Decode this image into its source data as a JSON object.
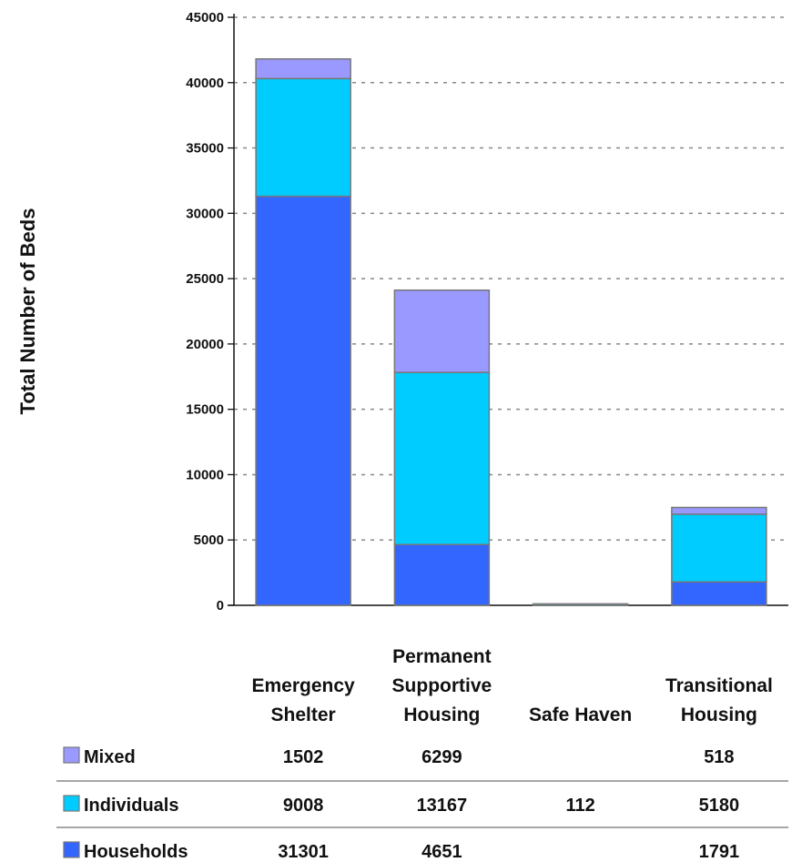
{
  "chart_data": {
    "type": "bar",
    "stacked": true,
    "title": "",
    "xlabel": "",
    "ylabel": "Total Number of Beds",
    "ylim": [
      0,
      45000
    ],
    "yticks": [
      "0",
      "5000",
      "10000",
      "15000",
      "20000",
      "25000",
      "30000",
      "35000",
      "40000",
      "45000"
    ],
    "grid": true,
    "categories": [
      [
        "Emergency",
        "Shelter"
      ],
      [
        "Permanent",
        "Supportive",
        "Housing"
      ],
      [
        "Safe Haven"
      ],
      [
        "Transitional",
        "Housing"
      ]
    ],
    "series": [
      {
        "name": "Households",
        "color": "#3366ff",
        "values": [
          31301,
          4651,
          null,
          1791
        ],
        "labels": [
          "31301",
          "4651",
          "",
          "1791"
        ]
      },
      {
        "name": "Individuals",
        "color": "#00ccff",
        "values": [
          9008,
          13167,
          112,
          5180
        ],
        "labels": [
          "9008",
          "13167",
          "112",
          "5180"
        ]
      },
      {
        "name": "Mixed",
        "color": "#9999ff",
        "values": [
          1502,
          6299,
          null,
          518
        ],
        "labels": [
          "1502",
          "6299",
          "",
          "518"
        ]
      }
    ],
    "table_row_order": [
      "Mixed",
      "Individuals",
      "Households"
    ],
    "legend_placement": "data-table-left"
  }
}
